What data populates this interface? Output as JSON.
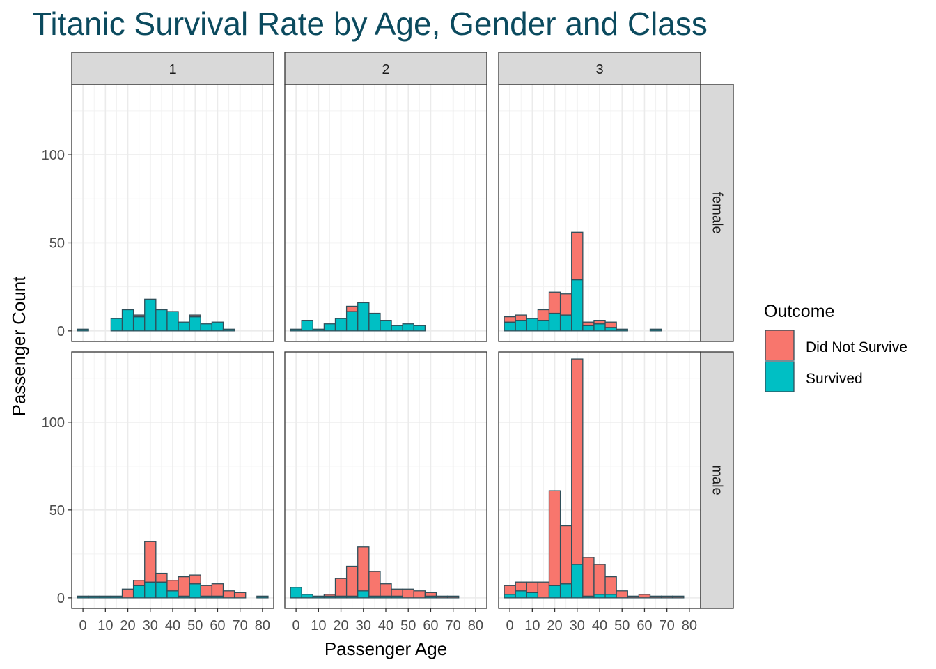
{
  "chart_data": {
    "type": "bar",
    "title": "Titanic Survival Rate by Age, Gender and Class",
    "xlabel": "Passenger Age",
    "ylabel": "Passenger Count",
    "xlim": [
      -5,
      85
    ],
    "ylim": [
      -6,
      140
    ],
    "x_ticks": [
      0,
      10,
      20,
      30,
      40,
      50,
      60,
      70,
      80
    ],
    "y_ticks": [
      0,
      50,
      100
    ],
    "column_facets": [
      "1",
      "2",
      "3"
    ],
    "row_facets": [
      "female",
      "male"
    ],
    "bin_width": 5,
    "bin_centers": [
      0,
      5,
      10,
      15,
      20,
      25,
      30,
      35,
      40,
      45,
      50,
      55,
      60,
      65,
      70,
      75,
      80
    ],
    "legend": {
      "title": "Outcome",
      "position": "right",
      "entries": [
        {
          "label": "Did Not Survive",
          "color": "#F8766D"
        },
        {
          "label": "Survived",
          "color": "#00BFC4"
        }
      ]
    },
    "colors": {
      "died": "#F8766D",
      "survived": "#00BFC4",
      "outline": "#2f4f5a",
      "strip": "#d9d9d9",
      "title": "#0b4a5e"
    },
    "panels": [
      {
        "row": "female",
        "col": "1",
        "died": [
          0,
          0,
          0,
          0,
          0,
          1,
          0,
          0,
          0,
          0,
          1,
          0,
          0,
          0,
          0,
          0,
          0
        ],
        "survived": [
          1,
          0,
          0,
          7,
          12,
          8,
          18,
          12,
          11,
          5,
          8,
          4,
          5,
          1,
          0,
          0,
          0
        ]
      },
      {
        "row": "female",
        "col": "2",
        "died": [
          0,
          0,
          0,
          0,
          0,
          3,
          0,
          0,
          0,
          0,
          0,
          0,
          0,
          0,
          0,
          0,
          0
        ],
        "survived": [
          1,
          6,
          1,
          4,
          7,
          11,
          16,
          10,
          6,
          3,
          4,
          3,
          0,
          0,
          0,
          0,
          0
        ]
      },
      {
        "row": "female",
        "col": "3",
        "died": [
          3,
          3,
          0,
          6,
          12,
          12,
          27,
          2,
          2,
          3,
          0,
          0,
          0,
          0,
          0,
          0,
          0
        ],
        "survived": [
          5,
          6,
          7,
          6,
          10,
          9,
          29,
          3,
          4,
          2,
          1,
          0,
          0,
          1,
          0,
          0,
          0
        ]
      },
      {
        "row": "male",
        "col": "1",
        "died": [
          0,
          0,
          0,
          0,
          5,
          3,
          23,
          5,
          6,
          11,
          5,
          6,
          7,
          4,
          3,
          0,
          0
        ],
        "survived": [
          1,
          1,
          1,
          1,
          0,
          7,
          9,
          9,
          4,
          1,
          8,
          1,
          1,
          0,
          0,
          0,
          1
        ]
      },
      {
        "row": "male",
        "col": "2",
        "died": [
          0,
          0,
          0,
          1,
          10,
          17,
          25,
          14,
          7,
          4,
          5,
          4,
          2,
          1,
          1,
          0,
          0
        ],
        "survived": [
          6,
          2,
          1,
          1,
          1,
          1,
          4,
          1,
          1,
          1,
          0,
          0,
          1,
          0,
          0,
          0,
          0
        ]
      },
      {
        "row": "male",
        "col": "3",
        "died": [
          5,
          5,
          6,
          9,
          54,
          33,
          117,
          22,
          17,
          10,
          4,
          1,
          2,
          1,
          1,
          1,
          0
        ],
        "survived": [
          2,
          4,
          3,
          0,
          7,
          8,
          19,
          1,
          2,
          2,
          0,
          0,
          0,
          0,
          0,
          0,
          0
        ]
      }
    ]
  }
}
